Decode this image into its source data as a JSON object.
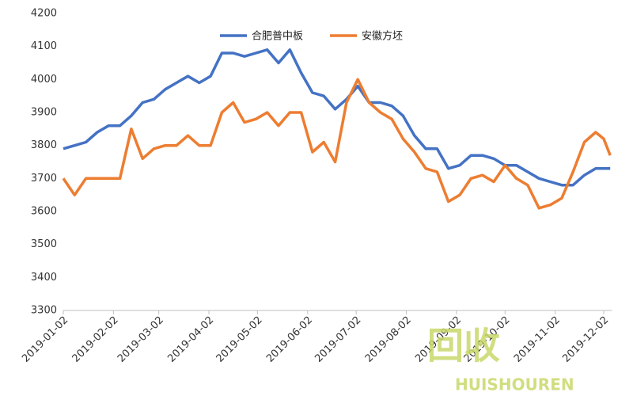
{
  "chart_data": {
    "type": "line",
    "x": [
      "2019-01-02",
      "2019-01-09",
      "2019-01-16",
      "2019-01-23",
      "2019-01-30",
      "2019-02-06",
      "2019-02-13",
      "2019-02-20",
      "2019-02-27",
      "2019-03-06",
      "2019-03-13",
      "2019-03-20",
      "2019-03-27",
      "2019-04-03",
      "2019-04-10",
      "2019-04-17",
      "2019-04-24",
      "2019-05-01",
      "2019-05-08",
      "2019-05-15",
      "2019-05-22",
      "2019-05-29",
      "2019-06-05",
      "2019-06-12",
      "2019-06-19",
      "2019-06-26",
      "2019-07-03",
      "2019-07-10",
      "2019-07-17",
      "2019-07-24",
      "2019-07-31",
      "2019-08-07",
      "2019-08-14",
      "2019-08-21",
      "2019-08-28",
      "2019-09-04",
      "2019-09-11",
      "2019-09-18",
      "2019-09-25",
      "2019-10-02",
      "2019-10-09",
      "2019-10-16",
      "2019-10-23",
      "2019-10-30",
      "2019-11-06",
      "2019-11-13",
      "2019-11-20",
      "2019-11-27",
      "2019-12-02",
      "2019-12-06"
    ],
    "series": [
      {
        "name": "合肥普中板",
        "color": "#4472c4",
        "values": [
          3790,
          3800,
          3810,
          3840,
          3860,
          3860,
          3890,
          3930,
          3940,
          3970,
          3990,
          4010,
          3990,
          4010,
          4080,
          4080,
          4070,
          4080,
          4090,
          4050,
          4090,
          4020,
          3960,
          3950,
          3910,
          3940,
          3980,
          3930,
          3930,
          3920,
          3890,
          3830,
          3790,
          3790,
          3730,
          3740,
          3770,
          3770,
          3760,
          3740,
          3740,
          3720,
          3700,
          3690,
          3680,
          3680,
          3710,
          3730,
          3730,
          3730
        ]
      },
      {
        "name": "安徽方坯",
        "color": "#ed7d31",
        "values": [
          3700,
          3650,
          3700,
          3700,
          3700,
          3700,
          3850,
          3760,
          3790,
          3800,
          3800,
          3830,
          3800,
          3800,
          3900,
          3930,
          3870,
          3880,
          3900,
          3860,
          3900,
          3900,
          3780,
          3810,
          3750,
          3930,
          4000,
          3930,
          3900,
          3880,
          3820,
          3780,
          3730,
          3720,
          3630,
          3650,
          3700,
          3710,
          3690,
          3740,
          3700,
          3680,
          3610,
          3620,
          3640,
          3720,
          3810,
          3840,
          3820,
          3770
        ]
      }
    ],
    "xlim": [
      "2019-01-02",
      "2019-12-06"
    ],
    "xticks": [
      "2019-01-02",
      "2019-02-02",
      "2019-03-02",
      "2019-04-02",
      "2019-05-02",
      "2019-06-02",
      "2019-07-02",
      "2019-08-02",
      "2019-09-02",
      "2019-10-02",
      "2019-11-02",
      "2019-12-02"
    ],
    "ylim": [
      3300,
      4200
    ],
    "yticks": [
      3300,
      3400,
      3500,
      3600,
      3700,
      3800,
      3900,
      4000,
      4100,
      4200
    ],
    "grid": false,
    "legend": "top",
    "watermark": {
      "logo": "回收",
      "brand": "HUISHOUREN"
    }
  }
}
